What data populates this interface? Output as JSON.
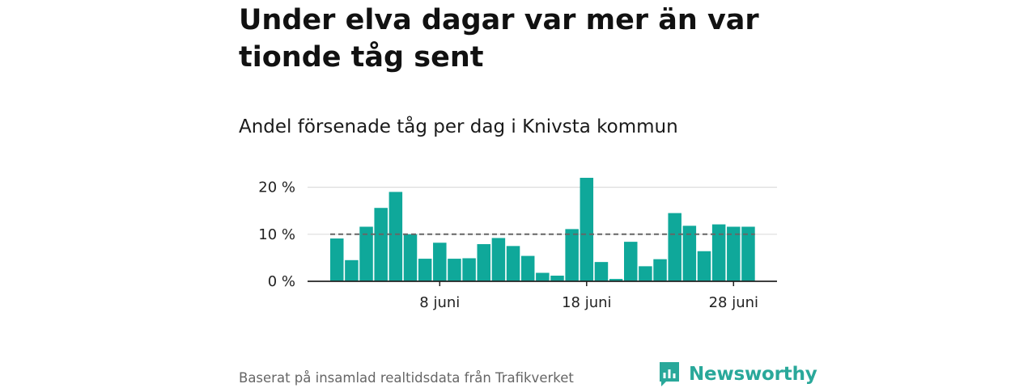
{
  "title": "Under elva dagar var mer än var tionde tåg sent",
  "subtitle": "Andel försenade tåg per dag i Knivsta kommun",
  "source": "Baserat på insamlad realtidsdata från Trafikverket",
  "brand": "Newsworthy",
  "colors": {
    "bar": "#0fa89a",
    "reference_line": "#666666",
    "brand": "#29a89a",
    "grid": "#dddddd"
  },
  "chart_data": {
    "type": "bar",
    "x_start_day": 1,
    "values": [
      9.1,
      4.5,
      11.6,
      15.6,
      19.0,
      10.0,
      4.8,
      8.2,
      4.8,
      4.9,
      7.9,
      9.2,
      7.5,
      5.4,
      1.8,
      1.2,
      11.1,
      22.0,
      4.1,
      0.5,
      8.4,
      3.2,
      4.7,
      14.5,
      11.8,
      6.4,
      12.1,
      11.6,
      11.6
    ],
    "reference_line": 10,
    "ylim": [
      0,
      22
    ],
    "y_ticks": [
      0,
      10,
      20
    ],
    "y_tick_labels": [
      "0 %",
      "10 %",
      "20 %"
    ],
    "x_tick_days": [
      8,
      18,
      28
    ],
    "x_tick_labels": [
      "8 juni",
      "18 juni",
      "28 juni"
    ],
    "grid": true
  }
}
